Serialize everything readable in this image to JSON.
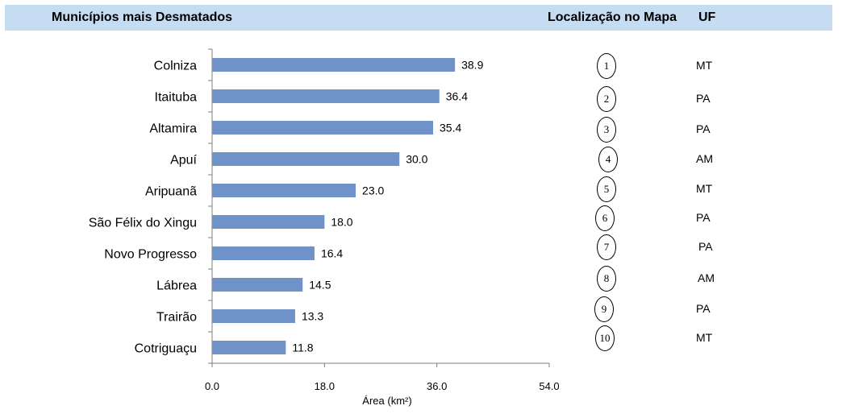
{
  "header": {
    "title": "Municípios mais Desmatados",
    "map_location": "Localização no Mapa",
    "uf": "UF"
  },
  "colors": {
    "header_band": "#c6dcf3",
    "bar": "#6f93c9"
  },
  "chart_data": {
    "type": "bar",
    "orientation": "horizontal",
    "categories": [
      "Colniza",
      "Itaituba",
      "Altamira",
      "Apuí",
      "Aripuanã",
      "São Félix do Xingu",
      "Novo Progresso",
      "Lábrea",
      "Trairão",
      "Cotriguaçu"
    ],
    "values": [
      38.9,
      36.4,
      35.4,
      30.0,
      23.0,
      18.0,
      16.4,
      14.5,
      13.3,
      11.8
    ],
    "value_labels": [
      "38.9",
      "36.4",
      "35.4",
      "30.0",
      "23.0",
      "18.0",
      "16.4",
      "14.5",
      "13.3",
      "11.8"
    ],
    "xlabel": "Área (km²)",
    "xlim": [
      0,
      54
    ],
    "xticks": [
      "0.0",
      "18.0",
      "36.0",
      "54.0"
    ],
    "grid": false
  },
  "map_table": [
    {
      "number": "1",
      "uf": "MT"
    },
    {
      "number": "2",
      "uf": "PA"
    },
    {
      "number": "3",
      "uf": "PA"
    },
    {
      "number": "4",
      "uf": "AM"
    },
    {
      "number": "5",
      "uf": "MT"
    },
    {
      "number": "6",
      "uf": "PA"
    },
    {
      "number": "7",
      "uf": "PA"
    },
    {
      "number": "8",
      "uf": "AM"
    },
    {
      "number": "9",
      "uf": "PA"
    },
    {
      "number": "10",
      "uf": "MT"
    }
  ]
}
